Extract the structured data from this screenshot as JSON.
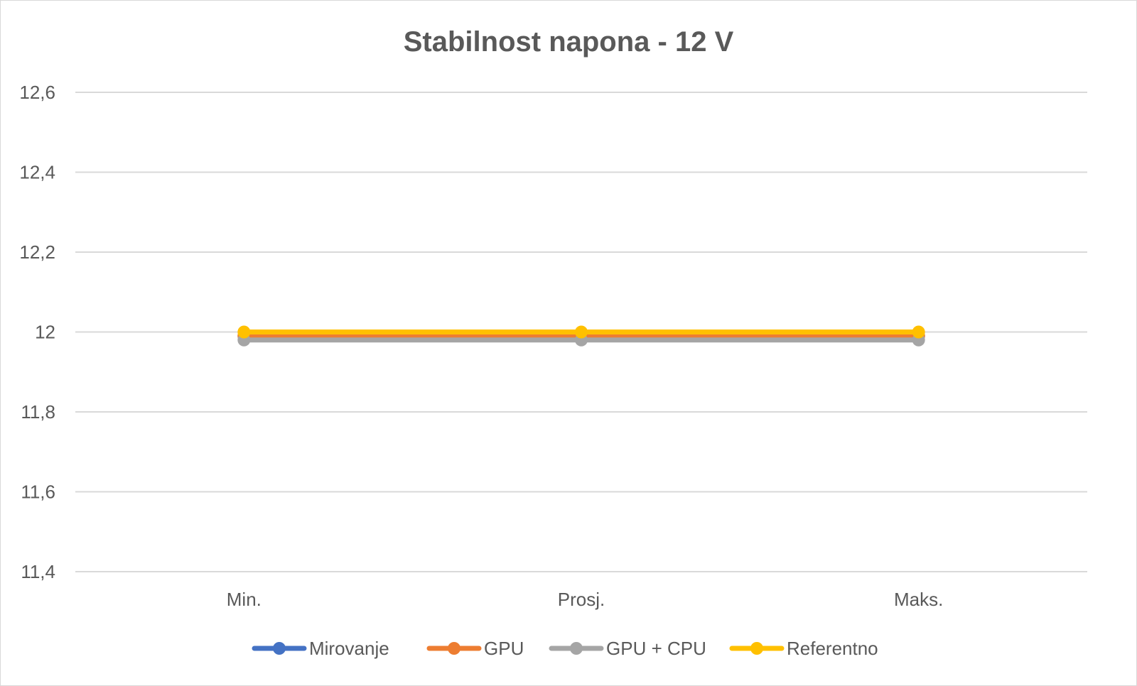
{
  "chart_data": {
    "type": "line",
    "title": "Stabilnost napona - 12 V",
    "xlabel": "",
    "ylabel": "",
    "categories": [
      "Min.",
      "Prosj.",
      "Maks."
    ],
    "y_ticks": [
      "11,4",
      "11,6",
      "11,8",
      "12",
      "12,2",
      "12,4",
      "12,6"
    ],
    "y_tick_values": [
      11.4,
      11.6,
      11.8,
      12.0,
      12.2,
      12.4,
      12.6
    ],
    "ylim": [
      11.4,
      12.6
    ],
    "grid": true,
    "legend_position": "bottom",
    "series": [
      {
        "name": "Mirovanje",
        "color": "#4472c4",
        "values": [
          11.99,
          11.99,
          11.99
        ]
      },
      {
        "name": "GPU",
        "color": "#ed7d31",
        "values": [
          11.99,
          11.99,
          11.99
        ]
      },
      {
        "name": "GPU + CPU",
        "color": "#a5a5a5",
        "values": [
          11.98,
          11.98,
          11.98
        ]
      },
      {
        "name": "Referentno",
        "color": "#ffc000",
        "values": [
          12.0,
          12.0,
          12.0
        ]
      }
    ]
  }
}
